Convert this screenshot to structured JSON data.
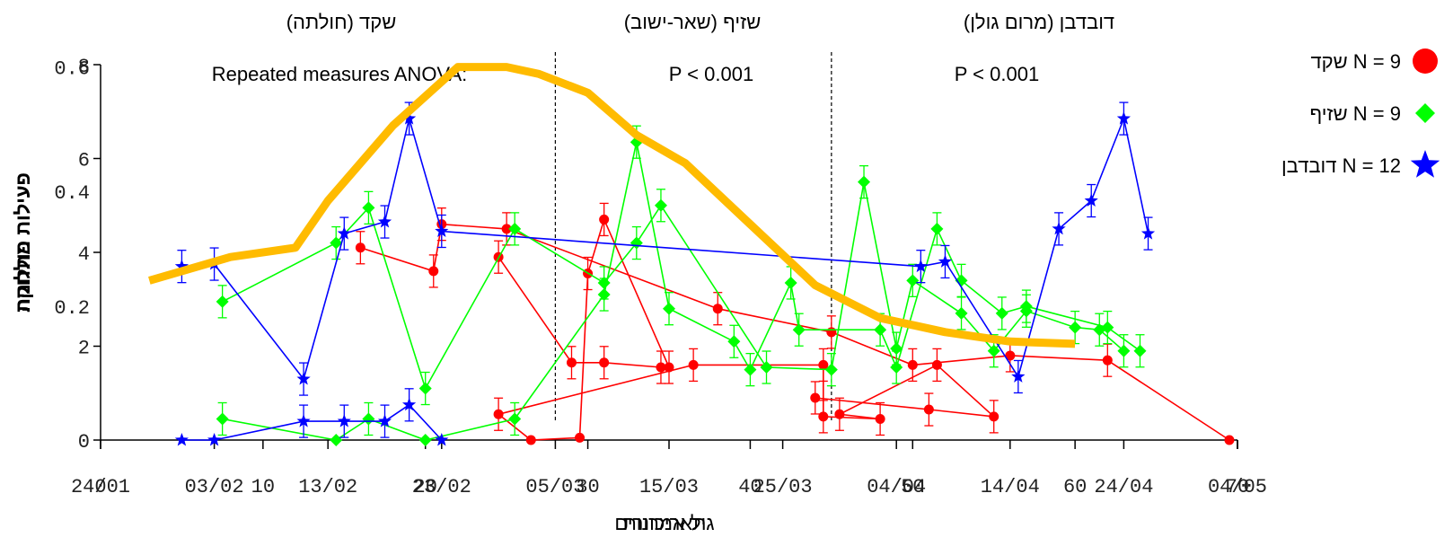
{
  "chart_data": {
    "type": "line",
    "ylabel": "פעילות פולחנית",
    "ylabel_overlay": "פעילות מחלוקה",
    "xlabel": "גיל אמרורים",
    "xlabel_overlay": "תאריכונות",
    "yticks_left": [
      "0",
      "2",
      "4",
      "6",
      "8"
    ],
    "yticks_right": [
      "0.2",
      "0.4",
      "0.6"
    ],
    "xticks": [
      "24/01",
      "03/02",
      "13/02",
      "23/02",
      "05/03",
      "15/03",
      "25/03",
      "04/04",
      "14/04",
      "24/04",
      "04/05"
    ],
    "xticks_overlay": [
      "0",
      "10",
      "20",
      "30",
      "40",
      "50",
      "60",
      "70"
    ],
    "sites": [
      {
        "name": "שקד (חולתה)",
        "stat": "Repeated measures ANOVA:"
      },
      {
        "name": "שזיף (שאר-ישוב)",
        "stat": "P < 0.001"
      },
      {
        "name": "דובדבן (מרום גולן)",
        "stat": "P < 0.001"
      }
    ],
    "ylim": [
      0,
      8
    ],
    "xlim": [
      0,
      70
    ],
    "x_dividers": [
      28,
      45
    ],
    "series": [
      {
        "name": "שקד",
        "legend": "N = 9",
        "color": "#ff0000",
        "marker": "circle",
        "paths": [
          [
            [
              16,
              4.1
            ],
            [
              20.5,
              3.6
            ],
            [
              21,
              4.6
            ],
            [
              25,
              4.5
            ],
            [
              38,
              2.8
            ],
            [
              45,
              2.3
            ],
            [
              50,
              1.6
            ],
            [
              56,
              1.8
            ],
            [
              62,
              1.7
            ],
            [
              69.5,
              0.0
            ]
          ],
          [
            [
              24.5,
              3.9
            ],
            [
              29,
              1.65
            ],
            [
              31,
              1.65
            ],
            [
              34.5,
              1.55
            ],
            [
              35,
              1.55
            ],
            [
              31,
              4.7
            ],
            [
              30,
              3.55
            ],
            [
              29.5,
              0.05
            ],
            [
              26.5,
              0.0
            ],
            [
              24.5,
              0.55
            ],
            [
              36.5,
              1.6
            ],
            [
              44.5,
              1.6
            ],
            [
              44.5,
              0.5
            ],
            [
              48,
              0.45
            ],
            [
              45.5,
              0.55
            ],
            [
              51.5,
              1.6
            ],
            [
              55,
              0.5
            ],
            [
              51,
              0.65
            ],
            [
              44,
              0.9
            ]
          ]
        ]
      },
      {
        "name": "שזיף",
        "legend": "N = 9",
        "color": "#00ff00",
        "marker": "diamond",
        "paths": [
          [
            [
              7.5,
              2.95
            ],
            [
              14.5,
              4.2
            ],
            [
              16.5,
              4.95
            ],
            [
              20,
              1.1
            ],
            [
              25.5,
              4.5
            ],
            [
              31,
              3.35
            ],
            [
              33,
              4.2
            ],
            [
              34.5,
              5.0
            ],
            [
              41,
              1.55
            ],
            [
              45,
              1.5
            ],
            [
              47,
              5.5
            ],
            [
              49,
              1.95
            ],
            [
              50,
              3.4
            ],
            [
              53,
              2.7
            ],
            [
              55,
              1.9
            ],
            [
              57,
              2.75
            ],
            [
              60,
              2.4
            ],
            [
              61.5,
              2.35
            ],
            [
              63,
              1.9
            ]
          ],
          [
            [
              7.5,
              0.45
            ],
            [
              14.5,
              0.0
            ],
            [
              16.5,
              0.45
            ],
            [
              20,
              0.0
            ],
            [
              25.5,
              0.45
            ],
            [
              31,
              3.1
            ],
            [
              33,
              6.35
            ],
            [
              35,
              2.8
            ],
            [
              39,
              2.1
            ],
            [
              40,
              1.5
            ],
            [
              42.5,
              3.35
            ],
            [
              43,
              2.35
            ],
            [
              48,
              2.35
            ],
            [
              49,
              1.55
            ],
            [
              51.5,
              4.5
            ],
            [
              53,
              3.4
            ],
            [
              55.5,
              2.7
            ],
            [
              57,
              2.85
            ],
            [
              62,
              2.4
            ],
            [
              64,
              1.9
            ]
          ]
        ]
      },
      {
        "name": "דובדבן",
        "legend": "N = 12",
        "color": "#0000ff",
        "marker": "star",
        "paths": [
          [
            [
              5,
              3.7
            ],
            [
              7,
              3.75
            ],
            [
              12.5,
              1.3
            ],
            [
              15,
              4.4
            ],
            [
              17.5,
              4.65
            ],
            [
              19,
              6.85
            ],
            [
              21,
              4.45
            ],
            [
              50.5,
              3.7
            ],
            [
              52,
              3.8
            ],
            [
              56.5,
              1.35
            ],
            [
              59,
              4.5
            ],
            [
              61,
              5.1
            ],
            [
              63,
              6.85
            ],
            [
              64.5,
              4.4
            ]
          ],
          [
            [
              5,
              0.0
            ],
            [
              7,
              0.0
            ],
            [
              12.5,
              0.4
            ],
            [
              15,
              0.4
            ],
            [
              17.5,
              0.4
            ],
            [
              19,
              0.75
            ],
            [
              21,
              0.0
            ]
          ]
        ]
      },
      {
        "name": "curve",
        "color": "#ffbb00",
        "marker": "none",
        "paths": [
          [
            [
              3,
              3.4
            ],
            [
              8,
              3.9
            ],
            [
              12,
              4.1
            ],
            [
              14,
              5.1
            ],
            [
              18,
              6.7
            ],
            [
              22,
              7.95
            ],
            [
              25,
              7.95
            ],
            [
              27,
              7.8
            ],
            [
              30,
              7.4
            ],
            [
              33,
              6.5
            ],
            [
              36,
              5.9
            ],
            [
              40,
              4.6
            ],
            [
              44,
              3.3
            ],
            [
              48,
              2.6
            ],
            [
              52,
              2.3
            ],
            [
              56,
              2.1
            ],
            [
              60,
              2.05
            ]
          ]
        ]
      }
    ],
    "grid": false,
    "legend_position": "top-right"
  }
}
